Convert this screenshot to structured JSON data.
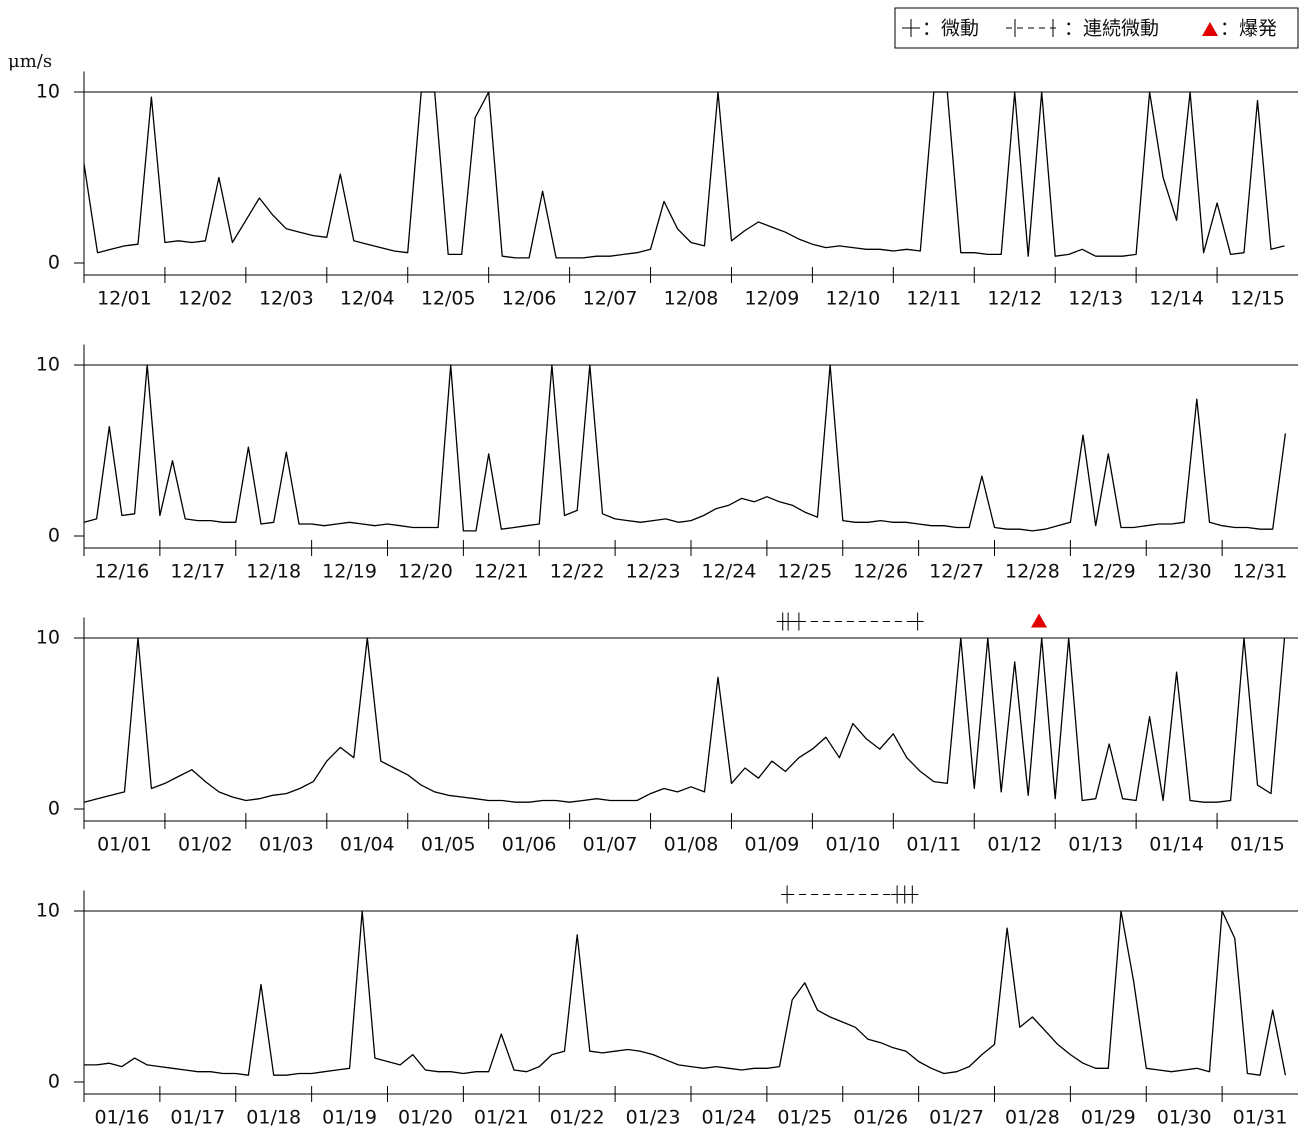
{
  "unit_label": "μm/s",
  "legend": [
    "：微動",
    "：連続微動",
    "：爆発"
  ],
  "chart_data": [
    {
      "type": "line",
      "color": "#000000",
      "ylim": [
        0,
        11.2
      ],
      "yticks": [
        0,
        10
      ],
      "grid": true,
      "categories": [
        null,
        null,
        null,
        "12/01",
        null,
        null,
        null,
        null,
        null,
        "12/02",
        null,
        null,
        null,
        null,
        null,
        "12/03",
        null,
        null,
        null,
        null,
        null,
        "12/04",
        null,
        null,
        null,
        null,
        null,
        "12/05",
        null,
        null,
        null,
        null,
        null,
        "12/06",
        null,
        null,
        null,
        null,
        null,
        "12/07",
        null,
        null,
        null,
        null,
        null,
        "12/08",
        null,
        null,
        null,
        null,
        null,
        "12/09",
        null,
        null,
        null,
        null,
        null,
        "12/10",
        null,
        null,
        null,
        null,
        null,
        "12/11",
        null,
        null,
        null,
        null,
        null,
        "12/12",
        null,
        null,
        null,
        null,
        null,
        "12/13",
        null,
        null,
        null,
        null,
        null,
        "12/14",
        null,
        null,
        null,
        null,
        null,
        "12/15",
        null,
        null
      ],
      "values": [
        5.8,
        0.6,
        0.8,
        1.0,
        1.1,
        9.7,
        1.2,
        1.3,
        1.2,
        1.3,
        5.0,
        1.2,
        2.5,
        3.8,
        2.8,
        2.0,
        1.8,
        1.6,
        1.5,
        5.2,
        1.3,
        1.1,
        0.9,
        0.7,
        0.6,
        10,
        10,
        0.5,
        0.5,
        8.5,
        10,
        0.4,
        0.3,
        0.3,
        4.2,
        0.3,
        0.3,
        0.3,
        0.4,
        0.4,
        0.5,
        0.6,
        0.8,
        3.6,
        2.0,
        1.2,
        1.0,
        10,
        1.3,
        1.9,
        2.4,
        2.1,
        1.8,
        1.4,
        1.1,
        0.9,
        1.0,
        0.9,
        0.8,
        0.8,
        0.7,
        0.8,
        0.7,
        10,
        10,
        0.6,
        0.6,
        0.5,
        0.5,
        10,
        0.4,
        10,
        0.4,
        0.5,
        0.8,
        0.4,
        0.4,
        0.4,
        0.5,
        10,
        5.0,
        2.5,
        10,
        0.6,
        3.5,
        0.5,
        0.6,
        9.5,
        0.8,
        1.0
      ]
    },
    {
      "type": "line",
      "color": "#000000",
      "ylim": [
        0,
        11.2
      ],
      "yticks": [
        0,
        10
      ],
      "grid": true,
      "categories": [
        null,
        null,
        null,
        "12/16",
        null,
        null,
        null,
        null,
        null,
        "12/17",
        null,
        null,
        null,
        null,
        null,
        "12/18",
        null,
        null,
        null,
        null,
        null,
        "12/19",
        null,
        null,
        null,
        null,
        null,
        "12/20",
        null,
        null,
        null,
        null,
        null,
        "12/21",
        null,
        null,
        null,
        null,
        null,
        "12/22",
        null,
        null,
        null,
        null,
        null,
        "12/23",
        null,
        null,
        null,
        null,
        null,
        "12/24",
        null,
        null,
        null,
        null,
        null,
        "12/25",
        null,
        null,
        null,
        null,
        null,
        "12/26",
        null,
        null,
        null,
        null,
        null,
        "12/27",
        null,
        null,
        null,
        null,
        null,
        "12/28",
        null,
        null,
        null,
        null,
        null,
        "12/29",
        null,
        null,
        null,
        null,
        null,
        "12/30",
        null,
        null,
        null,
        null,
        null,
        "12/31",
        null,
        null
      ],
      "values": [
        0.8,
        1.0,
        6.4,
        1.2,
        1.3,
        10,
        1.2,
        4.4,
        1.0,
        0.9,
        0.9,
        0.8,
        0.8,
        5.2,
        0.7,
        0.8,
        4.9,
        0.7,
        0.7,
        0.6,
        0.7,
        0.8,
        0.7,
        0.6,
        0.7,
        0.6,
        0.5,
        0.5,
        0.5,
        10,
        0.3,
        0.3,
        4.8,
        0.4,
        0.5,
        0.6,
        0.7,
        10,
        1.2,
        1.5,
        10,
        1.3,
        1.0,
        0.9,
        0.8,
        0.9,
        1.0,
        0.8,
        0.9,
        1.2,
        1.6,
        1.8,
        2.2,
        2.0,
        2.3,
        2.0,
        1.8,
        1.4,
        1.1,
        10,
        0.9,
        0.8,
        0.8,
        0.9,
        0.8,
        0.8,
        0.7,
        0.6,
        0.6,
        0.5,
        0.5,
        3.5,
        0.5,
        0.4,
        0.4,
        0.3,
        0.4,
        0.6,
        0.8,
        5.9,
        0.6,
        4.8,
        0.5,
        0.5,
        0.6,
        0.7,
        0.7,
        0.8,
        8.0,
        0.8,
        0.6,
        0.5,
        0.5,
        0.4,
        0.4,
        6.0
      ]
    },
    {
      "type": "line",
      "color": "#000000",
      "ylim": [
        0,
        11.2
      ],
      "yticks": [
        0,
        10
      ],
      "grid": true,
      "categories": [
        null,
        null,
        null,
        "01/01",
        null,
        null,
        null,
        null,
        null,
        "01/02",
        null,
        null,
        null,
        null,
        null,
        "01/03",
        null,
        null,
        null,
        null,
        null,
        "01/04",
        null,
        null,
        null,
        null,
        null,
        "01/05",
        null,
        null,
        null,
        null,
        null,
        "01/06",
        null,
        null,
        null,
        null,
        null,
        "01/07",
        null,
        null,
        null,
        null,
        null,
        "01/08",
        null,
        null,
        null,
        null,
        null,
        "01/09",
        null,
        null,
        null,
        null,
        null,
        "01/10",
        null,
        null,
        null,
        null,
        null,
        "01/11",
        null,
        null,
        null,
        null,
        null,
        "01/12",
        null,
        null,
        null,
        null,
        null,
        "01/13",
        null,
        null,
        null,
        null,
        null,
        "01/14",
        null,
        null,
        null,
        null,
        null,
        "01/15",
        null,
        null
      ],
      "values": [
        0.4,
        0.6,
        0.8,
        1.0,
        10,
        1.2,
        1.5,
        1.9,
        2.3,
        1.6,
        1.0,
        0.7,
        0.5,
        0.6,
        0.8,
        0.9,
        1.2,
        1.6,
        2.8,
        3.6,
        3.0,
        10,
        2.8,
        2.4,
        2.0,
        1.4,
        1.0,
        0.8,
        0.7,
        0.6,
        0.5,
        0.5,
        0.4,
        0.4,
        0.5,
        0.5,
        0.4,
        0.5,
        0.6,
        0.5,
        0.5,
        0.5,
        0.9,
        1.2,
        1.0,
        1.3,
        1.0,
        7.7,
        1.5,
        2.4,
        1.8,
        2.8,
        2.2,
        3.0,
        3.5,
        4.2,
        3.0,
        5.0,
        4.1,
        3.5,
        4.4,
        3.0,
        2.2,
        1.6,
        1.5,
        10,
        1.2,
        10,
        1.0,
        8.6,
        0.8,
        10,
        0.6,
        10,
        0.5,
        0.6,
        3.8,
        0.6,
        0.5,
        5.4,
        0.5,
        8.0,
        0.5,
        0.4,
        0.4,
        0.5,
        10,
        1.4,
        0.9,
        10
      ],
      "tremor_at": [
        51.8,
        52.2,
        53,
        61.8
      ],
      "continuous_tremor": [
        [
          53,
          61.8
        ]
      ],
      "eruption_at": [
        70.8
      ]
    },
    {
      "type": "line",
      "color": "#000000",
      "ylim": [
        0,
        11.2
      ],
      "yticks": [
        0,
        10
      ],
      "grid": true,
      "categories": [
        null,
        null,
        null,
        "01/16",
        null,
        null,
        null,
        null,
        null,
        "01/17",
        null,
        null,
        null,
        null,
        null,
        "01/18",
        null,
        null,
        null,
        null,
        null,
        "01/19",
        null,
        null,
        null,
        null,
        null,
        "01/20",
        null,
        null,
        null,
        null,
        null,
        "01/21",
        null,
        null,
        null,
        null,
        null,
        "01/22",
        null,
        null,
        null,
        null,
        null,
        "01/23",
        null,
        null,
        null,
        null,
        null,
        "01/24",
        null,
        null,
        null,
        null,
        null,
        "01/25",
        null,
        null,
        null,
        null,
        null,
        "01/26",
        null,
        null,
        null,
        null,
        null,
        "01/27",
        null,
        null,
        null,
        null,
        null,
        "01/28",
        null,
        null,
        null,
        null,
        null,
        "01/29",
        null,
        null,
        null,
        null,
        null,
        "01/30",
        null,
        null,
        null,
        null,
        null,
        "01/31",
        null,
        null
      ],
      "values": [
        1.0,
        1.0,
        1.1,
        0.9,
        1.4,
        1.0,
        0.9,
        0.8,
        0.7,
        0.6,
        0.6,
        0.5,
        0.5,
        0.4,
        5.7,
        0.4,
        0.4,
        0.5,
        0.5,
        0.6,
        0.7,
        0.8,
        10,
        1.4,
        1.2,
        1.0,
        1.6,
        0.7,
        0.6,
        0.6,
        0.5,
        0.6,
        0.6,
        2.8,
        0.7,
        0.6,
        0.9,
        1.6,
        1.8,
        8.6,
        1.8,
        1.7,
        1.8,
        1.9,
        1.8,
        1.6,
        1.3,
        1.0,
        0.9,
        0.8,
        0.9,
        0.8,
        0.7,
        0.8,
        0.8,
        0.9,
        4.8,
        5.8,
        4.2,
        3.8,
        3.5,
        3.2,
        2.5,
        2.3,
        2.0,
        1.8,
        1.2,
        0.8,
        0.5,
        0.6,
        0.9,
        1.6,
        2.2,
        9.0,
        3.2,
        3.8,
        3.0,
        2.2,
        1.6,
        1.1,
        0.8,
        0.8,
        10,
        5.9,
        0.8,
        0.7,
        0.6,
        0.7,
        0.8,
        0.6,
        10,
        8.4,
        0.5,
        0.4,
        4.2,
        0.4
      ],
      "tremor_at": [
        55.6,
        64.3,
        64.9,
        65.5
      ],
      "continuous_tremor": [
        [
          55.6,
          64.3
        ]
      ]
    }
  ]
}
